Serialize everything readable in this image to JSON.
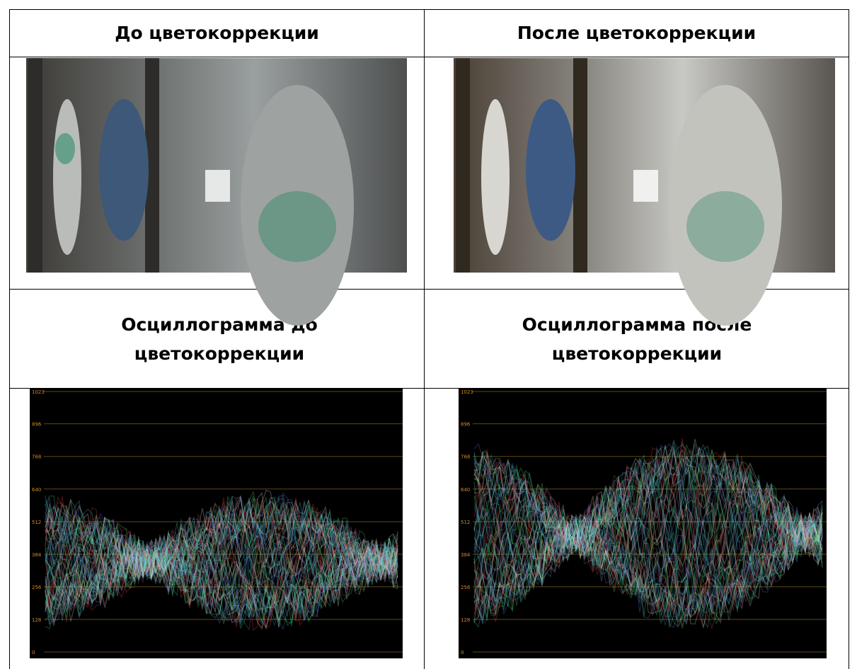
{
  "table": {
    "rows": [
      [
        "До цветокоррекции",
        "После цветокоррекции"
      ],
      [
        "Осциллограмма до цветокоррекции",
        "Осциллограмма после цветокоррекции"
      ]
    ]
  },
  "scope": {
    "scale": [
      0,
      128,
      256,
      384,
      512,
      640,
      768,
      896,
      1023
    ]
  }
}
